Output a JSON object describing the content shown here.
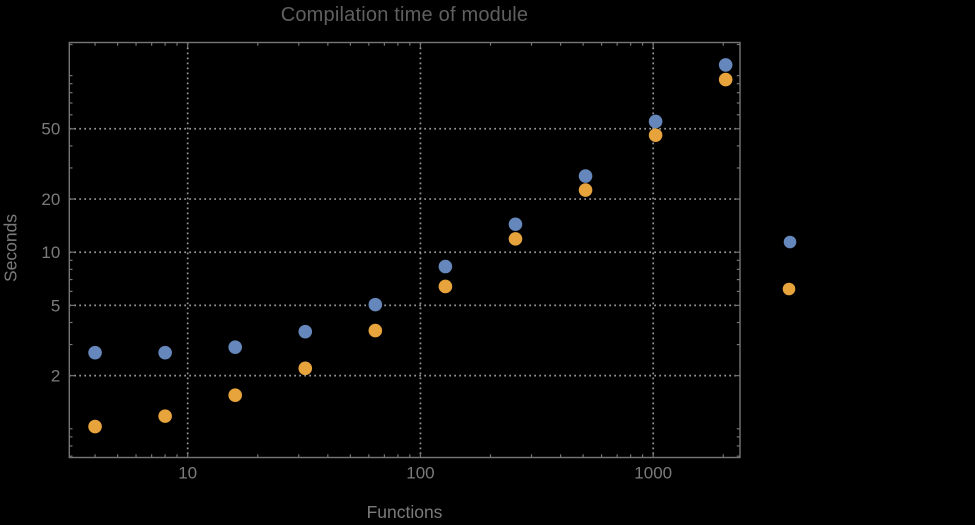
{
  "page": {
    "background": "#000000"
  },
  "chart": {
    "title": "Compilation time of module",
    "xlabel": "Functions",
    "ylabel": "Seconds"
  },
  "chart_data": {
    "type": "scatter",
    "title": "Compilation time of module",
    "xlabel": "Functions",
    "ylabel": "Seconds",
    "x_scale": "log",
    "y_scale": "log",
    "grid": true,
    "x": [
      4,
      8,
      16,
      32,
      64,
      128,
      256,
      512,
      1024,
      2048
    ],
    "series": [
      {
        "id": "series-blue",
        "marker_color": "#6687bb",
        "values": [
          2.7,
          2.7,
          2.9,
          3.55,
          5.05,
          8.3,
          14.4,
          27,
          55,
          115
        ]
      },
      {
        "id": "series-orange",
        "marker_color": "#e7a33c",
        "values": [
          1.03,
          1.18,
          1.55,
          2.2,
          3.6,
          6.4,
          11.9,
          22.5,
          46,
          95
        ]
      }
    ],
    "xlim": [
      3.1,
      2360
    ],
    "ylim": [
      0.688,
      154
    ],
    "x_ticks": {
      "major_values": [
        10,
        100,
        1000
      ],
      "major_labels": [
        "10",
        "100",
        "1000"
      ],
      "minor_values": [
        4,
        5,
        6,
        7,
        8,
        9,
        20,
        30,
        40,
        50,
        60,
        70,
        80,
        90,
        200,
        300,
        400,
        500,
        600,
        700,
        800,
        900,
        2000
      ]
    },
    "y_ticks": {
      "major_values": [
        2,
        5,
        10,
        20,
        50
      ],
      "major_labels": [
        "2",
        "5",
        "10",
        "20",
        "50"
      ],
      "minor_values": [
        0.7,
        0.8,
        0.9,
        1,
        3,
        4,
        6,
        7,
        8,
        9,
        30,
        40,
        60,
        70,
        80,
        90,
        100,
        150
      ]
    },
    "gridline_x_values": [
      10,
      100,
      1000
    ],
    "gridline_y_values": [
      2,
      5,
      10,
      20,
      50
    ],
    "legend": {
      "position": "outside-right",
      "labels_visible": false,
      "marker_colors": [
        "#6687bb",
        "#e7a33c"
      ]
    },
    "style": {
      "background": "#000000",
      "frame_color": "#757575",
      "grid_color": "#999999",
      "tick_label_color": "#7b7b7b",
      "axis_label_color": "#7b7b7b",
      "title_color": "#606060",
      "marker_radius": 6.8,
      "legend_marker_radius": 6.3
    }
  }
}
